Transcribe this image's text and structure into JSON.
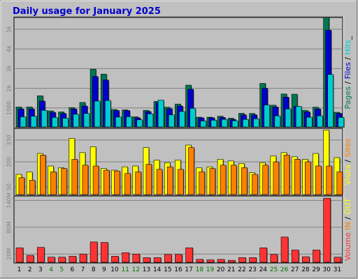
{
  "colors": {
    "background": "#c0c0c0",
    "pages": "#007755",
    "files": "#0000cc",
    "hits": "#00cccc",
    "visits": "#ffff00",
    "sites": "#ff7f00",
    "kbytes": "#ff3333",
    "title": "#0000cc",
    "weekend_label": "#007700",
    "weekday_label": "#000000"
  },
  "chart_data": {
    "type": "bar",
    "title": "Daily usage for January 2025",
    "categories": [
      "1",
      "2",
      "3",
      "4",
      "5",
      "6",
      "7",
      "8",
      "9",
      "10",
      "11",
      "12",
      "13",
      "14",
      "15",
      "16",
      "17",
      "18",
      "19",
      "20",
      "21",
      "22",
      "23",
      "24",
      "25",
      "26",
      "27",
      "28",
      "29",
      "30",
      "31"
    ],
    "weekend_days": [
      "4",
      "5",
      "11",
      "12",
      "18",
      "19",
      "25",
      "26"
    ],
    "panels": [
      {
        "id": "hits",
        "ylim": [
          0,
          5600
        ],
        "ticks": [
          {
            "value": 1000,
            "label": "1000"
          },
          {
            "value": 2000,
            "label": "2k"
          },
          {
            "value": 3000,
            "label": "3k"
          },
          {
            "value": 4000,
            "label": "4k"
          },
          {
            "value": 5000,
            "label": "5k"
          }
        ],
        "legend": [
          {
            "text": "Pages",
            "color": "#007755"
          },
          {
            "text": " / ",
            "color": "#000000"
          },
          {
            "text": "Files",
            "color": "#0000cc"
          },
          {
            "text": " / ",
            "color": "#000000"
          },
          {
            "text": "Hits",
            "color": "#00cccc"
          },
          {
            "text": "_",
            "color": "#000000"
          }
        ],
        "series": [
          {
            "name": "Pages",
            "color": "#007755",
            "values": [
              1050,
              1050,
              1620,
              850,
              800,
              1020,
              1280,
              2970,
              2720,
              920,
              900,
              550,
              880,
              1330,
              1040,
              1200,
              2160,
              530,
              530,
              580,
              480,
              730,
              720,
              2250,
              1140,
              1710,
              1700,
              880,
              1040,
              5600,
              780
            ]
          },
          {
            "name": "Files",
            "color": "#0000cc",
            "values": [
              950,
              950,
              1350,
              780,
              720,
              950,
              1100,
              2600,
              2420,
              870,
              870,
              500,
              820,
              1280,
              960,
              1100,
              1950,
              500,
              500,
              520,
              420,
              650,
              650,
              2000,
              1050,
              1550,
              1080,
              800,
              950,
              4950,
              720
            ]
          },
          {
            "name": "Hits",
            "color": "#00cccc",
            "values": [
              550,
              580,
              880,
              520,
              480,
              680,
              720,
              1350,
              1380,
              540,
              560,
              400,
              700,
              1400,
              650,
              820,
              980,
              340,
              380,
              420,
              350,
              420,
              450,
              1150,
              600,
              950,
              1080,
              530,
              600,
              2700,
              520
            ]
          }
        ]
      },
      {
        "id": "visits",
        "ylim": [
          0,
          400
        ],
        "ticks": [
          {
            "value": 50,
            "label": "50"
          },
          {
            "value": 200,
            "label": "200"
          },
          {
            "value": 330,
            "label": "330"
          }
        ],
        "legend": [
          {
            "text": "Visits",
            "color": "#ffff00"
          },
          {
            "text": " / ",
            "color": "#000000"
          },
          {
            "text": "Sites",
            "color": "#ff7f00"
          }
        ],
        "series": [
          {
            "name": "Visits",
            "color": "#ffff00",
            "values": [
              125,
              140,
              250,
              175,
              165,
              340,
              255,
              290,
              160,
              150,
              170,
              175,
              285,
              210,
              195,
              210,
              300,
              165,
              170,
              215,
              205,
              190,
              135,
              195,
              235,
              255,
              230,
              215,
              250,
              390,
              225
            ]
          },
          {
            "name": "Sites",
            "color": "#ff7f00",
            "values": [
              105,
              90,
              240,
              140,
              160,
              215,
              180,
              175,
              150,
              145,
              130,
              140,
              185,
              155,
              170,
              155,
              285,
              140,
              160,
              180,
              180,
              165,
              125,
              180,
              200,
              240,
              215,
              200,
              175,
              175,
              140
            ]
          }
        ]
      },
      {
        "id": "volume",
        "ylim": [
          0,
          150000000
        ],
        "ticks": [
          {
            "value": 20000000,
            "label": "20M"
          },
          {
            "value": 80000000,
            "label": "80M"
          },
          {
            "value": 140000000,
            "label": "140M"
          }
        ],
        "legend": [
          {
            "text": "Volume",
            "color": "#ff3333"
          },
          {
            "text": "  ",
            "color": "#000000"
          },
          {
            "text": "IN",
            "color": "#ff7f00"
          },
          {
            "text": " / ",
            "color": "#000000"
          },
          {
            "text": "OUT",
            "color": "#ffff00"
          }
        ],
        "series": [
          {
            "name": "Volume",
            "color": "#ff3333",
            "values": [
              34000000,
              17000000,
              35000000,
              13000000,
              13000000,
              15000000,
              20000000,
              47000000,
              46000000,
              15000000,
              23000000,
              20000000,
              12000000,
              12000000,
              19000000,
              19000000,
              34000000,
              8000000,
              7000000,
              8000000,
              6000000,
              12000000,
              12000000,
              34000000,
              19000000,
              58000000,
              29000000,
              14000000,
              29000000,
              145000000,
              13000000
            ]
          }
        ]
      }
    ]
  }
}
